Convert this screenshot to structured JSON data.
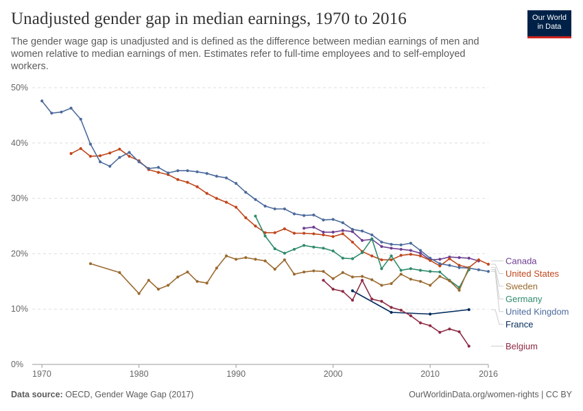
{
  "header": {
    "title": "Unadjusted gender gap in median earnings, 1970 to 2016",
    "subtitle": "The gender wage gap is unadjusted and is defined as the difference between median earnings of men and women relative to median earnings of men. Estimates refer to full-time employees and to self-employed workers.",
    "logo_line1": "Our World",
    "logo_line2": "in Data"
  },
  "footer": {
    "source_label": "Data source:",
    "source_text": "OECD, Gender Wage Gap (2017)",
    "url_text": "OurWorldinData.org/women-rights | CC BY"
  },
  "colors": {
    "accent_red": "#ce261e",
    "brand_navy": "#002147"
  },
  "chart_data": {
    "type": "line",
    "x_ticks": [
      "1970",
      "1980",
      "1990",
      "2000",
      "2010",
      "2016"
    ],
    "y_ticks": [
      "0%",
      "10%",
      "20%",
      "30%",
      "40%",
      "50%"
    ],
    "xlim": [
      1969,
      2016
    ],
    "ylim": [
      0,
      50
    ],
    "grid": true,
    "legend": "right",
    "series": [
      {
        "name": "Canada",
        "color": "#6d3e91",
        "x": [
          1997,
          1998,
          1999,
          2000,
          2001,
          2002,
          2003,
          2004,
          2005,
          2006,
          2007,
          2008,
          2009,
          2010,
          2011,
          2012,
          2013,
          2014,
          2015
        ],
        "y": [
          24.6,
          24.8,
          23.9,
          23.9,
          24.2,
          24.0,
          22.4,
          22.6,
          21.3,
          21.0,
          20.8,
          20.6,
          20.1,
          18.9,
          19.0,
          19.4,
          19.3,
          19.2,
          18.7
        ]
      },
      {
        "name": "United States",
        "color": "#c0461b",
        "x": [
          1973,
          1974,
          1975,
          1976,
          1977,
          1978,
          1979,
          1980,
          1981,
          1982,
          1983,
          1984,
          1985,
          1986,
          1987,
          1988,
          1989,
          1990,
          1991,
          1992,
          1993,
          1994,
          1995,
          1996,
          1997,
          1998,
          1999,
          2000,
          2001,
          2002,
          2003,
          2004,
          2005,
          2006,
          2007,
          2008,
          2009,
          2010,
          2011,
          2012,
          2013,
          2014,
          2015,
          2016
        ],
        "y": [
          38.1,
          39.0,
          37.6,
          37.7,
          38.2,
          38.9,
          37.6,
          36.8,
          35.2,
          34.7,
          34.3,
          33.4,
          32.9,
          32.1,
          30.9,
          30.0,
          29.3,
          28.4,
          26.5,
          25.0,
          23.8,
          23.8,
          24.5,
          23.7,
          23.7,
          23.6,
          23.4,
          23.1,
          23.6,
          22.1,
          20.4,
          19.6,
          18.9,
          18.9,
          19.7,
          19.9,
          19.6,
          18.8,
          17.8,
          19.1,
          17.9,
          17.5,
          18.9,
          18.1
        ]
      },
      {
        "name": "Germany",
        "color": "#2e8b6a",
        "x": [
          1992,
          1993,
          1994,
          1995,
          1996,
          1997,
          1998,
          1999,
          2000,
          2001,
          2002,
          2003,
          2004,
          2005,
          2006,
          2007,
          2008,
          2009,
          2010,
          2011,
          2012,
          2013,
          2014
        ],
        "y": [
          26.8,
          23.2,
          20.9,
          20.1,
          20.8,
          21.5,
          21.2,
          21.0,
          20.5,
          19.2,
          19.1,
          20.2,
          22.7,
          17.3,
          19.6,
          17.0,
          17.3,
          17.0,
          16.8,
          16.7,
          15.2,
          13.9,
          17.1
        ]
      },
      {
        "name": "United Kingdom",
        "color": "#4c6a9c",
        "x": [
          1970,
          1971,
          1972,
          1973,
          1974,
          1975,
          1976,
          1977,
          1978,
          1979,
          1980,
          1981,
          1982,
          1983,
          1984,
          1985,
          1986,
          1987,
          1988,
          1989,
          1990,
          1991,
          1992,
          1993,
          1994,
          1995,
          1996,
          1997,
          1998,
          1999,
          2000,
          2001,
          2002,
          2003,
          2004,
          2005,
          2006,
          2007,
          2008,
          2009,
          2010,
          2011,
          2012,
          2013,
          2014,
          2015,
          2016
        ],
        "y": [
          47.6,
          45.4,
          45.6,
          46.3,
          44.3,
          39.8,
          36.6,
          35.8,
          37.4,
          38.3,
          36.6,
          35.4,
          35.6,
          34.6,
          35.0,
          35.0,
          34.8,
          34.5,
          34.0,
          33.7,
          32.7,
          31.1,
          29.8,
          28.6,
          28.1,
          28.1,
          27.2,
          26.9,
          27.0,
          26.1,
          26.2,
          25.6,
          24.4,
          24.1,
          23.4,
          22.1,
          21.7,
          21.6,
          21.9,
          20.6,
          19.2,
          18.2,
          17.9,
          17.5,
          17.4,
          17.1,
          16.8
        ]
      },
      {
        "name": "Sweden",
        "color": "#9a6a2f",
        "x": [
          1975,
          1978,
          1980,
          1981,
          1982,
          1983,
          1984,
          1985,
          1986,
          1987,
          1988,
          1989,
          1990,
          1991,
          1992,
          1993,
          1994,
          1995,
          1996,
          1997,
          1998,
          1999,
          2000,
          2001,
          2002,
          2003,
          2004,
          2005,
          2006,
          2007,
          2008,
          2009,
          2010,
          2011,
          2012,
          2013,
          2014
        ],
        "y": [
          18.2,
          16.6,
          12.8,
          15.2,
          13.6,
          14.3,
          15.8,
          16.7,
          15.0,
          14.7,
          17.4,
          19.6,
          19.0,
          19.3,
          19.0,
          18.7,
          17.2,
          18.9,
          16.3,
          16.7,
          16.9,
          16.8,
          15.5,
          16.6,
          15.8,
          15.9,
          15.3,
          14.3,
          14.6,
          16.3,
          15.4,
          15.0,
          14.3,
          15.9,
          15.1,
          13.4,
          17.5
        ]
      },
      {
        "name": "France",
        "color": "#00295b",
        "x": [
          2002,
          2006,
          2010,
          2014
        ],
        "y": [
          13.3,
          9.4,
          9.1,
          9.9
        ]
      },
      {
        "name": "Belgium",
        "color": "#8e2a44",
        "x": [
          1999,
          2000,
          2001,
          2002,
          2003,
          2004,
          2005,
          2006,
          2007,
          2008,
          2009,
          2010,
          2011,
          2012,
          2013,
          2014
        ],
        "y": [
          15.2,
          13.6,
          13.2,
          11.6,
          15.2,
          11.8,
          11.4,
          10.3,
          9.8,
          8.8,
          7.5,
          7.0,
          5.8,
          6.4,
          5.9,
          3.3
        ]
      }
    ],
    "legend_order": [
      "Canada",
      "United States",
      "Germany",
      "United Kingdom",
      "Sweden",
      "France",
      "Belgium"
    ]
  }
}
